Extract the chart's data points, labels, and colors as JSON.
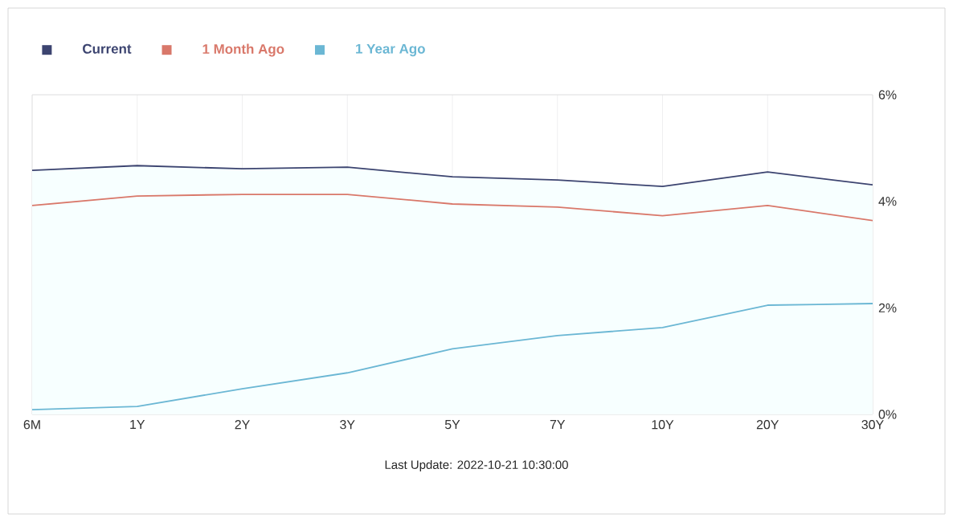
{
  "chart_data": {
    "type": "line",
    "categories": [
      "6M",
      "1Y",
      "2Y",
      "3Y",
      "5Y",
      "7Y",
      "10Y",
      "20Y",
      "30Y"
    ],
    "series": [
      {
        "name": "Current",
        "color": "#3c4470",
        "type": "area",
        "values": [
          4.58,
          4.67,
          4.61,
          4.64,
          4.46,
          4.4,
          4.28,
          4.55,
          4.31
        ]
      },
      {
        "name": "1 Month Ago",
        "color": "#d9786a",
        "values": [
          3.92,
          4.1,
          4.13,
          4.13,
          3.95,
          3.89,
          3.73,
          3.92,
          3.64
        ]
      },
      {
        "name": "1 Year Ago",
        "color": "#6bb7d4",
        "values": [
          0.09,
          0.15,
          0.48,
          0.78,
          1.23,
          1.48,
          1.63,
          2.05,
          2.08
        ]
      }
    ],
    "ylim": [
      0,
      6
    ],
    "yticks": [
      {
        "value": 0,
        "label": "0%"
      },
      {
        "value": 2,
        "label": "2%"
      },
      {
        "value": 4,
        "label": "4%"
      },
      {
        "value": 6,
        "label": "6%"
      }
    ],
    "grid": true,
    "legend": "top left",
    "marker": "none",
    "line_style": "solid",
    "annotations": [
      "Last Update: 2022-10-21 10:30:00"
    ]
  }
}
